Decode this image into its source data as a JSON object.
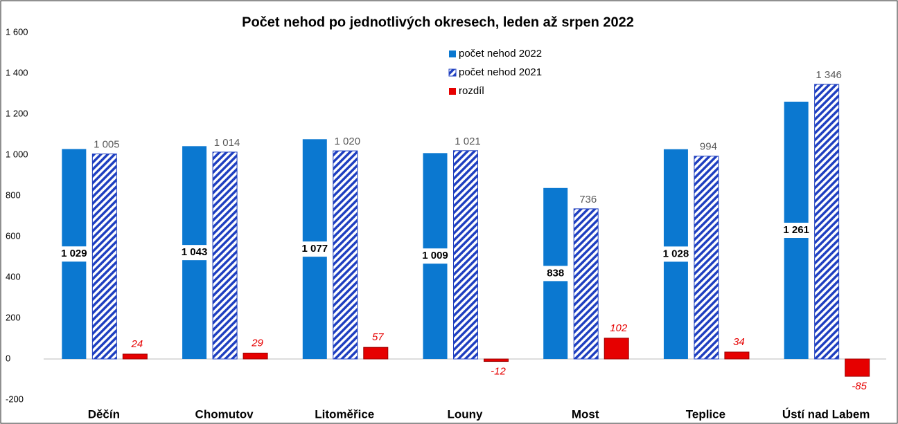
{
  "chart_data": {
    "type": "bar",
    "title": "Počet nehod po jednotlivých okresech, leden až srpen 2022",
    "categories": [
      "Děčín",
      "Chomutov",
      "Litoměřice",
      "Louny",
      "Most",
      "Teplice",
      "Ústí nad Labem"
    ],
    "series": [
      {
        "name": "počet nehod 2022",
        "color": "#0b78d0",
        "values": [
          1029,
          1043,
          1077,
          1009,
          838,
          1028,
          1261
        ],
        "value_labels": [
          "1 029",
          "1 043",
          "1 077",
          "1 009",
          "838",
          "1 028",
          "1 261"
        ]
      },
      {
        "name": "počet nehod 2021",
        "color": "#1f3fc0",
        "values": [
          1005,
          1014,
          1020,
          1021,
          736,
          994,
          1346
        ],
        "value_labels": [
          "1 005",
          "1 014",
          "1 020",
          "1 021",
          "736",
          "994",
          "1 346"
        ]
      },
      {
        "name": "rozdíl",
        "color": "#e60000",
        "values": [
          24,
          29,
          57,
          -12,
          102,
          34,
          -85
        ]
      }
    ],
    "ylim": [
      -200,
      1600
    ],
    "yticks": [
      {
        "value": -200,
        "label": "-200"
      },
      0,
      200,
      400,
      600,
      800,
      {
        "value": 1000,
        "label": "1 000"
      },
      {
        "value": 1200,
        "label": "1 200"
      },
      {
        "value": 1400,
        "label": "1 400"
      },
      {
        "value": 1600,
        "label": "1 600"
      }
    ],
    "legend": "top"
  }
}
